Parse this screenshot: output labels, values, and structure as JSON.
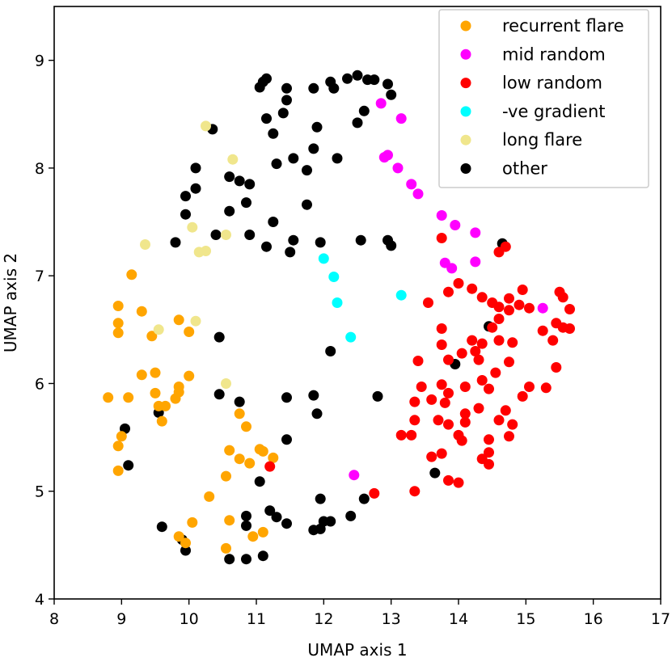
{
  "chart_data": {
    "type": "scatter",
    "title": "",
    "xlabel": "UMAP axis 1",
    "ylabel": "UMAP axis 2",
    "xlim": [
      8,
      17
    ],
    "ylim": [
      4,
      9.5
    ],
    "xticks": [
      8,
      9,
      10,
      11,
      12,
      13,
      14,
      15,
      16,
      17
    ],
    "yticks": [
      4,
      5,
      6,
      7,
      8,
      9
    ],
    "grid": false,
    "legend_position": "top-right",
    "series": [
      {
        "name": "other",
        "color": "#000000",
        "points": [
          [
            11.05,
            8.75
          ],
          [
            11.1,
            8.8
          ],
          [
            11.15,
            8.83
          ],
          [
            11.45,
            8.74
          ],
          [
            11.45,
            8.63
          ],
          [
            11.15,
            8.46
          ],
          [
            11.4,
            8.51
          ],
          [
            11.25,
            8.32
          ],
          [
            11.85,
            8.74
          ],
          [
            12.1,
            8.8
          ],
          [
            12.15,
            8.74
          ],
          [
            12.35,
            8.83
          ],
          [
            12.5,
            8.86
          ],
          [
            12.65,
            8.82
          ],
          [
            12.75,
            8.82
          ],
          [
            12.95,
            8.78
          ],
          [
            13.0,
            8.68
          ],
          [
            12.6,
            8.53
          ],
          [
            12.5,
            8.42
          ],
          [
            10.35,
            8.36
          ],
          [
            11.3,
            8.04
          ],
          [
            11.55,
            8.09
          ],
          [
            11.75,
            7.98
          ],
          [
            11.85,
            8.18
          ],
          [
            11.9,
            8.38
          ],
          [
            12.2,
            8.09
          ],
          [
            10.1,
            8.0
          ],
          [
            10.1,
            7.81
          ],
          [
            9.95,
            7.74
          ],
          [
            9.95,
            7.57
          ],
          [
            10.6,
            7.92
          ],
          [
            10.75,
            7.88
          ],
          [
            10.9,
            7.85
          ],
          [
            10.85,
            7.68
          ],
          [
            10.6,
            7.6
          ],
          [
            10.4,
            7.38
          ],
          [
            10.9,
            7.38
          ],
          [
            11.25,
            7.5
          ],
          [
            11.75,
            7.66
          ],
          [
            11.15,
            7.27
          ],
          [
            11.55,
            7.33
          ],
          [
            11.5,
            7.22
          ],
          [
            11.95,
            7.31
          ],
          [
            12.55,
            7.33
          ],
          [
            12.95,
            7.33
          ],
          [
            13.0,
            7.28
          ],
          [
            9.8,
            7.31
          ],
          [
            10.45,
            6.43
          ],
          [
            12.1,
            6.3
          ],
          [
            10.45,
            5.9
          ],
          [
            10.75,
            5.83
          ],
          [
            11.45,
            5.87
          ],
          [
            11.85,
            5.89
          ],
          [
            11.9,
            5.72
          ],
          [
            12.8,
            5.88
          ],
          [
            11.45,
            5.48
          ],
          [
            9.05,
            5.58
          ],
          [
            9.1,
            5.24
          ],
          [
            9.55,
            5.73
          ],
          [
            11.05,
            5.09
          ],
          [
            11.95,
            4.93
          ],
          [
            9.6,
            4.67
          ],
          [
            9.9,
            4.55
          ],
          [
            9.95,
            4.45
          ],
          [
            10.6,
            4.37
          ],
          [
            10.85,
            4.37
          ],
          [
            11.1,
            4.4
          ],
          [
            10.85,
            4.77
          ],
          [
            10.85,
            4.68
          ],
          [
            11.2,
            4.82
          ],
          [
            11.3,
            4.76
          ],
          [
            11.45,
            4.7
          ],
          [
            11.85,
            4.64
          ],
          [
            11.95,
            4.65
          ],
          [
            12.0,
            4.72
          ],
          [
            12.1,
            4.72
          ],
          [
            12.4,
            4.77
          ],
          [
            12.6,
            4.93
          ],
          [
            13.95,
            6.18
          ],
          [
            14.45,
            6.53
          ],
          [
            14.65,
            7.3
          ],
          [
            13.65,
            5.17
          ]
        ]
      },
      {
        "name": "recurrent flare",
        "color": "#FFA500",
        "points": [
          [
            9.15,
            7.01
          ],
          [
            8.95,
            6.72
          ],
          [
            8.95,
            6.56
          ],
          [
            8.95,
            6.47
          ],
          [
            9.3,
            6.67
          ],
          [
            9.45,
            6.44
          ],
          [
            9.85,
            6.59
          ],
          [
            10.0,
            6.48
          ],
          [
            9.3,
            6.08
          ],
          [
            9.5,
            6.1
          ],
          [
            10.0,
            6.07
          ],
          [
            8.8,
            5.87
          ],
          [
            9.1,
            5.87
          ],
          [
            9.5,
            5.91
          ],
          [
            9.55,
            5.79
          ],
          [
            9.65,
            5.79
          ],
          [
            9.8,
            5.86
          ],
          [
            9.85,
            5.92
          ],
          [
            9.85,
            5.97
          ],
          [
            9.6,
            5.65
          ],
          [
            8.95,
            5.42
          ],
          [
            9.0,
            5.51
          ],
          [
            8.95,
            5.19
          ],
          [
            10.6,
            5.38
          ],
          [
            10.75,
            5.3
          ],
          [
            10.75,
            5.72
          ],
          [
            10.85,
            5.6
          ],
          [
            10.9,
            5.26
          ],
          [
            11.05,
            5.39
          ],
          [
            11.1,
            5.37
          ],
          [
            11.25,
            5.31
          ],
          [
            10.55,
            5.14
          ],
          [
            10.3,
            4.95
          ],
          [
            10.6,
            4.73
          ],
          [
            9.85,
            4.58
          ],
          [
            9.95,
            4.52
          ],
          [
            10.05,
            4.71
          ],
          [
            10.55,
            4.47
          ],
          [
            10.95,
            4.58
          ],
          [
            11.1,
            4.62
          ]
        ]
      },
      {
        "name": "mid random",
        "color": "#FF00FF",
        "points": [
          [
            12.85,
            8.6
          ],
          [
            13.15,
            8.46
          ],
          [
            12.9,
            8.1
          ],
          [
            12.95,
            8.12
          ],
          [
            13.1,
            8.0
          ],
          [
            13.3,
            7.85
          ],
          [
            13.4,
            7.76
          ],
          [
            13.75,
            7.56
          ],
          [
            13.95,
            7.47
          ],
          [
            14.25,
            7.4
          ],
          [
            13.8,
            7.12
          ],
          [
            13.9,
            7.07
          ],
          [
            14.25,
            7.13
          ],
          [
            15.25,
            6.7
          ],
          [
            12.45,
            5.15
          ]
        ]
      },
      {
        "name": "low random",
        "color": "#FF0000",
        "points": [
          [
            14.6,
            7.22
          ],
          [
            14.7,
            7.27
          ],
          [
            13.75,
            7.35
          ],
          [
            14.2,
            6.88
          ],
          [
            13.55,
            6.75
          ],
          [
            13.85,
            6.85
          ],
          [
            14.0,
            6.93
          ],
          [
            14.35,
            6.8
          ],
          [
            14.5,
            6.75
          ],
          [
            14.6,
            6.71
          ],
          [
            14.75,
            6.79
          ],
          [
            14.95,
            6.87
          ],
          [
            15.05,
            6.7
          ],
          [
            14.9,
            6.73
          ],
          [
            14.75,
            6.68
          ],
          [
            14.6,
            6.6
          ],
          [
            15.5,
            6.85
          ],
          [
            15.55,
            6.8
          ],
          [
            15.65,
            6.69
          ],
          [
            15.55,
            6.52
          ],
          [
            15.65,
            6.51
          ],
          [
            15.25,
            6.49
          ],
          [
            15.45,
            6.56
          ],
          [
            15.4,
            6.4
          ],
          [
            14.5,
            6.52
          ],
          [
            13.75,
            6.51
          ],
          [
            14.2,
            6.4
          ],
          [
            13.75,
            6.36
          ],
          [
            13.4,
            6.21
          ],
          [
            13.85,
            6.22
          ],
          [
            14.05,
            6.28
          ],
          [
            14.25,
            6.3
          ],
          [
            14.35,
            6.37
          ],
          [
            14.6,
            6.4
          ],
          [
            14.8,
            6.38
          ],
          [
            14.75,
            6.2
          ],
          [
            14.55,
            6.1
          ],
          [
            14.3,
            6.22
          ],
          [
            14.35,
            6.03
          ],
          [
            14.45,
            5.95
          ],
          [
            14.1,
            5.97
          ],
          [
            13.75,
            5.99
          ],
          [
            13.8,
            5.82
          ],
          [
            13.85,
            5.91
          ],
          [
            13.45,
            5.97
          ],
          [
            13.35,
            5.83
          ],
          [
            13.6,
            5.85
          ],
          [
            13.35,
            5.66
          ],
          [
            13.7,
            5.66
          ],
          [
            13.85,
            5.62
          ],
          [
            14.1,
            5.72
          ],
          [
            14.3,
            5.77
          ],
          [
            14.1,
            5.64
          ],
          [
            14.7,
            5.75
          ],
          [
            14.6,
            5.66
          ],
          [
            14.8,
            5.62
          ],
          [
            14.75,
            5.51
          ],
          [
            14.95,
            5.88
          ],
          [
            15.05,
            5.97
          ],
          [
            15.45,
            6.15
          ],
          [
            15.3,
            5.96
          ],
          [
            13.15,
            5.52
          ],
          [
            13.3,
            5.52
          ],
          [
            13.6,
            5.32
          ],
          [
            13.75,
            5.35
          ],
          [
            14.0,
            5.52
          ],
          [
            14.05,
            5.47
          ],
          [
            14.45,
            5.48
          ],
          [
            14.45,
            5.36
          ],
          [
            14.35,
            5.3
          ],
          [
            14.45,
            5.25
          ],
          [
            13.85,
            5.1
          ],
          [
            14.0,
            5.08
          ],
          [
            13.35,
            5.0
          ],
          [
            12.75,
            4.98
          ],
          [
            11.2,
            5.23
          ]
        ]
      },
      {
        "name": "-ve gradient",
        "color": "#00FFFF",
        "points": [
          [
            12.0,
            7.16
          ],
          [
            12.15,
            6.99
          ],
          [
            12.2,
            6.75
          ],
          [
            12.4,
            6.43
          ],
          [
            13.15,
            6.82
          ]
        ]
      },
      {
        "name": "long flare",
        "color": "#F0E68C",
        "points": [
          [
            10.25,
            8.39
          ],
          [
            10.65,
            8.08
          ],
          [
            9.35,
            7.29
          ],
          [
            10.05,
            7.45
          ],
          [
            10.15,
            7.22
          ],
          [
            10.25,
            7.23
          ],
          [
            10.55,
            7.38
          ],
          [
            9.55,
            6.5
          ],
          [
            10.1,
            6.58
          ],
          [
            10.55,
            6.0
          ]
        ]
      }
    ],
    "legend": [
      {
        "label": "recurrent flare",
        "color": "#FFA500"
      },
      {
        "label": "mid random",
        "color": "#FF00FF"
      },
      {
        "label": "low random",
        "color": "#FF0000"
      },
      {
        "label": "-ve gradient",
        "color": "#00FFFF"
      },
      {
        "label": "long flare",
        "color": "#F0E68C"
      },
      {
        "label": "other",
        "color": "#000000"
      }
    ]
  }
}
